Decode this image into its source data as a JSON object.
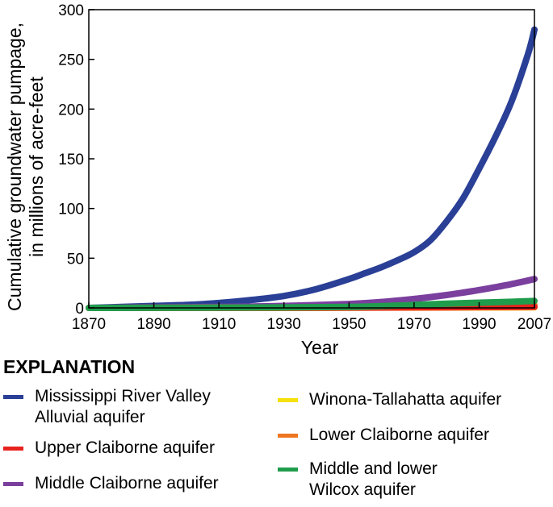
{
  "chart_data": {
    "type": "line",
    "title": "",
    "xlabel": "Year",
    "ylabel": "Cumulative groundwater pumpage, in millions of acre-feet",
    "ylabel_lines": [
      "Cumulative groundwater pumpage,",
      "in millions of acre-feet"
    ],
    "xlim": [
      1870,
      2007
    ],
    "ylim": [
      0,
      300
    ],
    "xticks": [
      1870,
      1890,
      1910,
      1930,
      1950,
      1970,
      1990,
      2007
    ],
    "xtick_labels": [
      "1870",
      "1890",
      "1910",
      "1930",
      "1950",
      "1970",
      "1990",
      "2007"
    ],
    "yticks": [
      0,
      50,
      100,
      150,
      200,
      250,
      300
    ],
    "ytick_labels": [
      "0",
      "50",
      "100",
      "150",
      "200",
      "250",
      "300"
    ],
    "grid": false,
    "series": [
      {
        "name": "Mississippi River Valley\nAlluvial aquifer",
        "color": "#2a3f96",
        "x": [
          1870,
          1880,
          1890,
          1900,
          1910,
          1920,
          1930,
          1940,
          1950,
          1955,
          1960,
          1965,
          1970,
          1975,
          1980,
          1985,
          1990,
          1995,
          2000,
          2005,
          2007
        ],
        "y": [
          0,
          1,
          2,
          3,
          5,
          8,
          12,
          19,
          29,
          35,
          41,
          48,
          56,
          68,
          87,
          110,
          140,
          172,
          208,
          255,
          280
        ]
      },
      {
        "name": "Upper Claiborne aquifer",
        "color": "#e8221e",
        "x": [
          1870,
          1900,
          1930,
          1960,
          1980,
          2007
        ],
        "y": [
          0,
          0.1,
          0.2,
          0.4,
          0.6,
          1
        ]
      },
      {
        "name": "Middle Claiborne aquifer",
        "color": "#7b3f9e",
        "x": [
          1870,
          1890,
          1910,
          1930,
          1950,
          1960,
          1970,
          1980,
          1990,
          2000,
          2007
        ],
        "y": [
          0,
          0.5,
          1,
          2,
          4,
          6,
          9,
          13,
          18,
          24,
          29
        ]
      },
      {
        "name": "Winona-Tallahatta aquifer",
        "color": "#f4e00a",
        "x": [
          1870,
          1930,
          1970,
          2007
        ],
        "y": [
          0,
          0.1,
          0.3,
          0.6
        ]
      },
      {
        "name": "Lower Claiborne aquifer",
        "color": "#ee7623",
        "x": [
          1870,
          1930,
          1960,
          1980,
          2007
        ],
        "y": [
          0,
          0.2,
          0.8,
          1.5,
          3
        ]
      },
      {
        "name": "Middle and lower\nWilcox aquifer",
        "color": "#1f9d4c",
        "x": [
          1870,
          1900,
          1930,
          1950,
          1960,
          1970,
          1980,
          1990,
          2000,
          2007
        ],
        "y": [
          0,
          0.2,
          0.5,
          1,
          1.8,
          3,
          4.3,
          5.3,
          6.2,
          7
        ]
      }
    ]
  },
  "legend": {
    "title": "EXPLANATION",
    "placement": "bottom"
  }
}
